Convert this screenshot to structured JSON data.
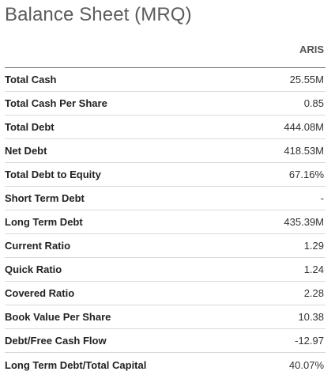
{
  "title": "Balance Sheet (MRQ)",
  "table": {
    "header": {
      "metric": "",
      "ticker": "ARIS"
    },
    "rows": [
      {
        "metric": "Total Cash",
        "value": "25.55M"
      },
      {
        "metric": "Total Cash Per Share",
        "value": "0.85"
      },
      {
        "metric": "Total Debt",
        "value": "444.08M"
      },
      {
        "metric": "Net Debt",
        "value": "418.53M"
      },
      {
        "metric": "Total Debt to Equity",
        "value": "67.16%"
      },
      {
        "metric": "Short Term Debt",
        "value": "-"
      },
      {
        "metric": "Long Term Debt",
        "value": "435.39M"
      },
      {
        "metric": "Current Ratio",
        "value": "1.29"
      },
      {
        "metric": "Quick Ratio",
        "value": "1.24"
      },
      {
        "metric": "Covered Ratio",
        "value": "2.28"
      },
      {
        "metric": "Book Value Per Share",
        "value": "10.38"
      },
      {
        "metric": "Debt/Free Cash Flow",
        "value": "-12.97"
      },
      {
        "metric": "Long Term Debt/Total Capital",
        "value": "40.07%"
      }
    ]
  }
}
